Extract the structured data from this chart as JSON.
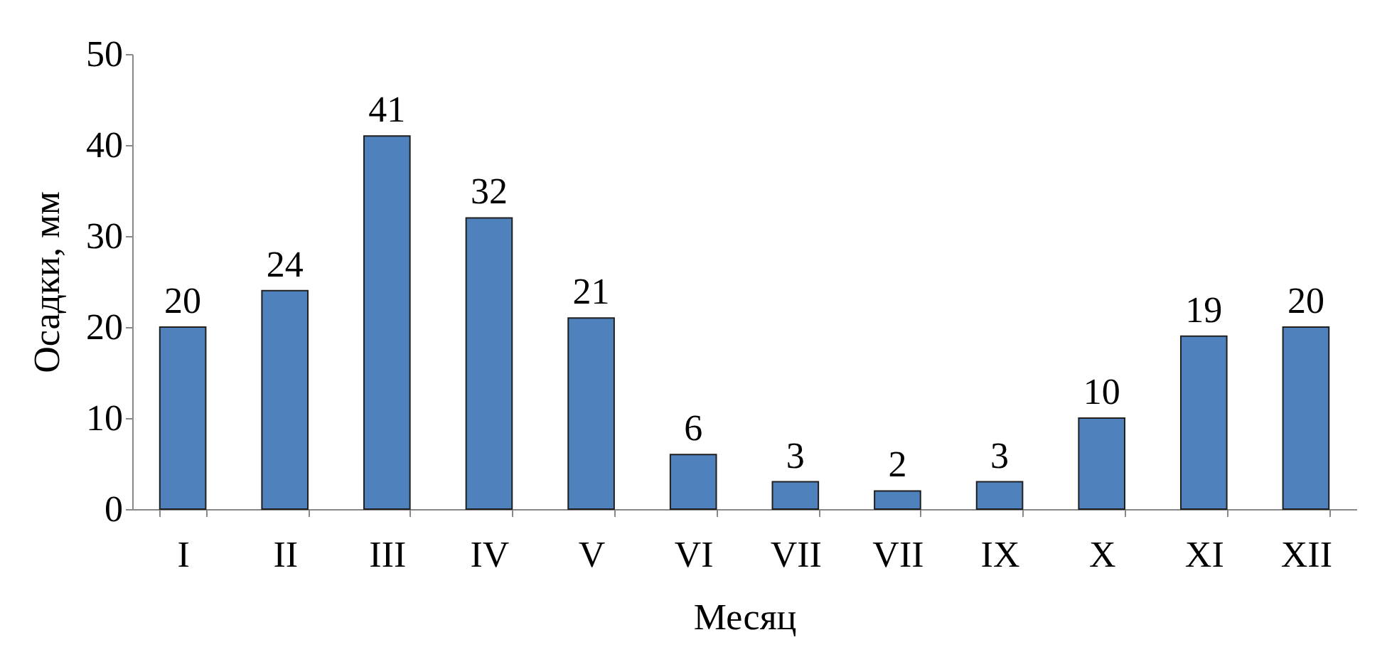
{
  "chart_data": {
    "type": "bar",
    "xlabel": "Месяц",
    "ylabel": "Осадки, мм",
    "categories": [
      "I",
      "II",
      "III",
      "IV",
      "V",
      "VI",
      "VII",
      "VII",
      "IX",
      "X",
      "XI",
      "XII"
    ],
    "values": [
      20,
      24,
      41,
      32,
      21,
      6,
      3,
      2,
      3,
      10,
      19,
      20
    ],
    "color": "#4f81bd",
    "ylim": [
      0,
      50
    ],
    "yticks": [
      0,
      10,
      20,
      30,
      40,
      50
    ],
    "grid": false,
    "data_labels": true
  }
}
